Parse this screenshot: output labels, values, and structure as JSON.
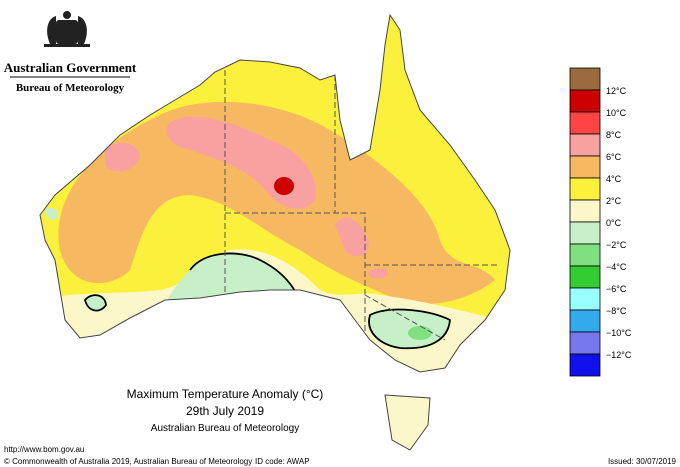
{
  "header": {
    "government": "Australian Government",
    "bureau": "Bureau of Meteorology"
  },
  "title": {
    "line1": "Maximum Temperature Anomaly (°C)",
    "line2": "29th July 2019",
    "line3": "Australian Bureau of Meteorology"
  },
  "legend": {
    "labels": [
      "12°C",
      "10°C",
      "8°C",
      "6°C",
      "4°C",
      "2°C",
      "0°C",
      "−2°C",
      "−4°C",
      "−6°C",
      "−8°C",
      "−10°C",
      "−12°C"
    ]
  },
  "footer": {
    "url": "http://www.bom.gov.au",
    "copyright": "© Commonwealth of Australia 2019, Australian Bureau of Meteorology",
    "id_code": "ID code: AWAP",
    "issued": "Issued: 30/07/2019"
  }
}
